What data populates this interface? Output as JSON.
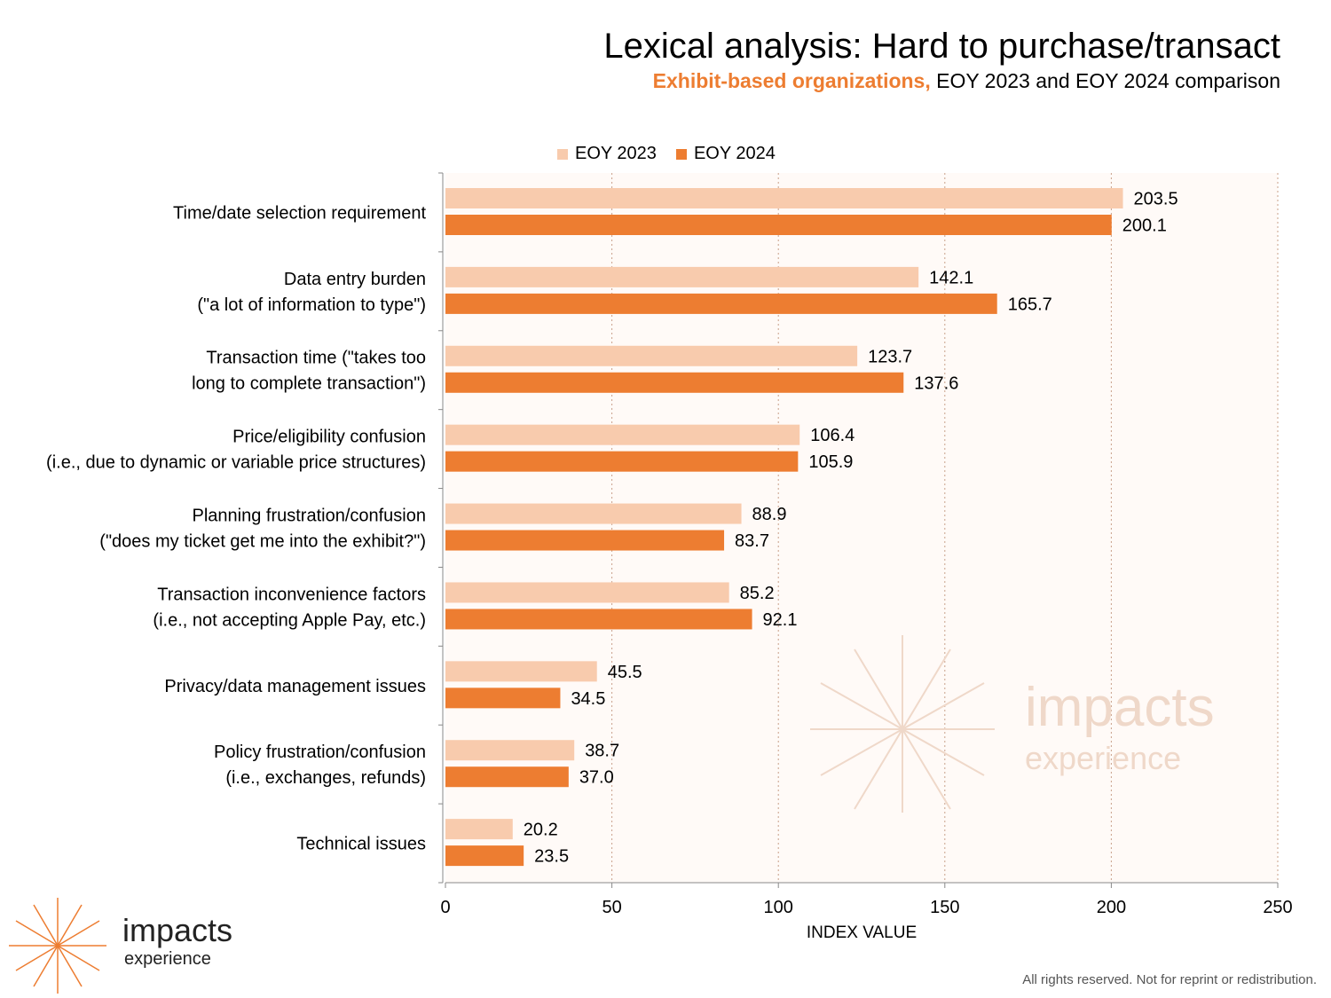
{
  "title": "Lexical analysis: Hard to purchase/transact",
  "subtitle": {
    "accent": "Exhibit-based organizations,",
    "rest": " EOY 2023 and EOY 2024 comparison"
  },
  "legend": [
    {
      "label": "EOY 2023",
      "color": "#f8cbad"
    },
    {
      "label": "EOY 2024",
      "color": "#ed7d31"
    }
  ],
  "footer": "All rights reserved. Not for reprint or redistribution.",
  "logo": {
    "line1": "impacts",
    "line2": "experience"
  },
  "chart_data": {
    "type": "bar",
    "orientation": "horizontal",
    "categories": [
      [
        "Time/date selection requirement"
      ],
      [
        "Data entry burden",
        "(\"a lot of information to type\")"
      ],
      [
        "Transaction time (\"takes too",
        "long to complete transaction\")"
      ],
      [
        "Price/eligibility confusion",
        "(i.e., due to dynamic or variable price structures)"
      ],
      [
        "Planning frustration/confusion",
        "(\"does my ticket get me into the exhibit?\")"
      ],
      [
        "Transaction inconvenience factors",
        "(i.e., not accepting Apple Pay, etc.)"
      ],
      [
        "Privacy/data management issues"
      ],
      [
        "Policy frustration/confusion",
        "(i.e., exchanges, refunds)"
      ],
      [
        "Technical issues"
      ]
    ],
    "series": [
      {
        "name": "EOY 2023",
        "color": "#f8cbad",
        "values": [
          203.5,
          142.1,
          123.7,
          106.4,
          88.9,
          85.2,
          45.5,
          38.7,
          20.2
        ],
        "labels": [
          "203.5",
          "142.1",
          "123.7",
          "106.4",
          "88.9",
          "85.2",
          "45.5",
          "38.7",
          "20.2"
        ]
      },
      {
        "name": "EOY 2024",
        "color": "#ed7d31",
        "values": [
          200.1,
          165.7,
          137.6,
          105.9,
          83.7,
          92.1,
          34.5,
          37.0,
          23.5
        ],
        "labels": [
          "200.1",
          "165.7",
          "137.6",
          "105.9",
          "83.7",
          "92.1",
          "34.5",
          "37.0",
          "23.5"
        ]
      }
    ],
    "xlabel": "INDEX VALUE",
    "xlim": [
      0,
      250
    ],
    "xticks": [
      0,
      50,
      100,
      150,
      200,
      250
    ],
    "grid": "vertical dotted",
    "plot_background": "#fffaf7",
    "legend_position": "top"
  }
}
